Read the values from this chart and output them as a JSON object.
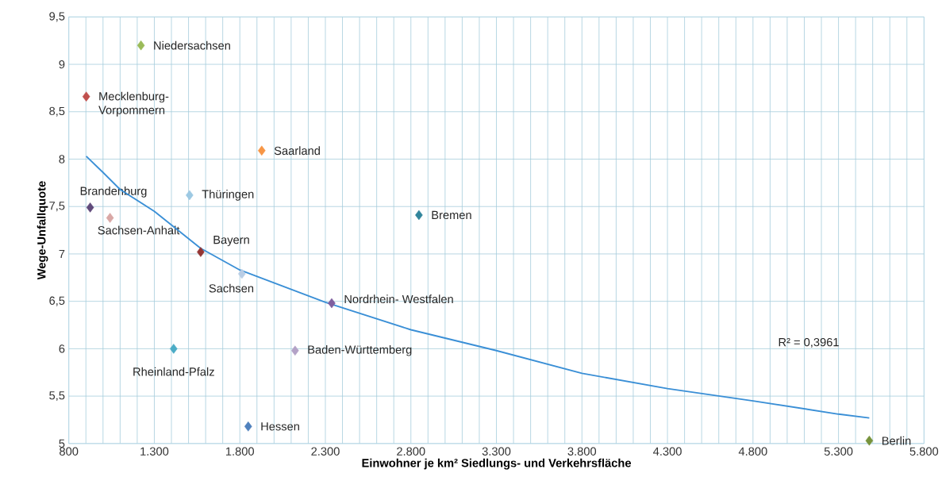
{
  "chart_data": {
    "type": "scatter",
    "xlabel": "Einwohner je km² Siedlungs- und Verkehrsfläche",
    "ylabel": "Wege-Unfallquote",
    "marker": "diamond",
    "grid": true,
    "xlim": [
      800,
      5800
    ],
    "xticks": [
      800,
      {
        "value": 900,
        "label": null
      },
      {
        "value": 1000,
        "label": null
      },
      {
        "value": 1100,
        "label": null
      },
      {
        "value": 1200,
        "label": null
      },
      {
        "value": 1300,
        "label": "1.300"
      },
      {
        "value": 1400,
        "label": null
      },
      {
        "value": 1500,
        "label": null
      },
      {
        "value": 1600,
        "label": null
      },
      {
        "value": 1700,
        "label": null
      },
      {
        "value": 1800,
        "label": "1.800"
      },
      {
        "value": 1900,
        "label": null
      },
      {
        "value": 2000,
        "label": null
      },
      {
        "value": 2100,
        "label": null
      },
      {
        "value": 2200,
        "label": null
      },
      {
        "value": 2300,
        "label": "2.300"
      },
      {
        "value": 2400,
        "label": null
      },
      {
        "value": 2500,
        "label": null
      },
      {
        "value": 2600,
        "label": null
      },
      {
        "value": 2700,
        "label": null
      },
      {
        "value": 2800,
        "label": "2.800"
      },
      {
        "value": 2900,
        "label": null
      },
      {
        "value": 3000,
        "label": null
      },
      {
        "value": 3100,
        "label": null
      },
      {
        "value": 3200,
        "label": null
      },
      {
        "value": 3300,
        "label": "3.300"
      },
      {
        "value": 3400,
        "label": null
      },
      {
        "value": 3500,
        "label": null
      },
      {
        "value": 3600,
        "label": null
      },
      {
        "value": 3700,
        "label": null
      },
      {
        "value": 3800,
        "label": "3.800"
      },
      {
        "value": 3900,
        "label": null
      },
      {
        "value": 4000,
        "label": null
      },
      {
        "value": 4100,
        "label": null
      },
      {
        "value": 4200,
        "label": null
      },
      {
        "value": 4300,
        "label": "4.300"
      },
      {
        "value": 4400,
        "label": null
      },
      {
        "value": 4500,
        "label": null
      },
      {
        "value": 4600,
        "label": null
      },
      {
        "value": 4700,
        "label": null
      },
      {
        "value": 4800,
        "label": "4.800"
      },
      {
        "value": 4900,
        "label": null
      },
      {
        "value": 5000,
        "label": null
      },
      {
        "value": 5100,
        "label": null
      },
      {
        "value": 5200,
        "label": null
      },
      {
        "value": 5300,
        "label": "5.300"
      },
      {
        "value": 5400,
        "label": null
      },
      {
        "value": 5500,
        "label": null
      },
      {
        "value": 5600,
        "label": null
      },
      {
        "value": 5700,
        "label": null
      },
      {
        "value": 5800,
        "label": "5.800"
      }
    ],
    "ylim": [
      5,
      9.5
    ],
    "yticks": [
      5,
      {
        "value": 5.5,
        "label": "5,5"
      },
      6,
      {
        "value": 6.5,
        "label": "6,5"
      },
      7,
      {
        "value": 7.5,
        "label": "7,5"
      },
      8,
      {
        "value": 8.5,
        "label": "8,5"
      },
      9,
      {
        "value": 9.5,
        "label": "9,5"
      }
    ],
    "series": [
      {
        "name": "Niedersachsen",
        "color": "#9bbb59",
        "x": [
          1222
        ],
        "values": [
          9.2
        ]
      },
      {
        "name": "Mecklenburg-Vorpommern",
        "color": "#c0504d",
        "x": [
          902
        ],
        "values": [
          8.66
        ]
      },
      {
        "name": "Saarland",
        "color": "#f79646",
        "x": [
          1928
        ],
        "values": [
          8.09
        ]
      },
      {
        "name": "Thüringen",
        "color": "#9dc9e3",
        "x": [
          1506
        ],
        "values": [
          7.62
        ]
      },
      {
        "name": "Brandenburg",
        "color": "#604a7b",
        "x": [
          925
        ],
        "values": [
          7.49
        ]
      },
      {
        "name": "Sachsen-Anhalt",
        "color": "#d9a8a6",
        "x": [
          1041
        ],
        "values": [
          7.38
        ]
      },
      {
        "name": "Bremen",
        "color": "#31859c",
        "x": [
          2847
        ],
        "values": [
          7.41
        ]
      },
      {
        "name": "Bayern",
        "color": "#943634",
        "x": [
          1571
        ],
        "values": [
          7.02
        ]
      },
      {
        "name": "Sachsen",
        "color": "#b9cde5",
        "x": [
          1812
        ],
        "values": [
          6.79
        ]
      },
      {
        "name": "Nordrhein- Westfalen",
        "color": "#7f5f9f",
        "x": [
          2337
        ],
        "values": [
          6.48
        ]
      },
      {
        "name": "Rheinland-Pfalz",
        "color": "#4bacc6",
        "x": [
          1413
        ],
        "values": [
          6.0
        ]
      },
      {
        "name": "Baden-Württemberg",
        "color": "#b3a2c7",
        "x": [
          2123
        ],
        "values": [
          5.98
        ]
      },
      {
        "name": "Hessen",
        "color": "#4f81bd",
        "x": [
          1849
        ],
        "values": [
          5.18
        ]
      },
      {
        "name": "Berlin",
        "color": "#77933c",
        "x": [
          5480
        ],
        "values": [
          5.03
        ]
      },
      {
        "type": "line",
        "marker": "none",
        "color": "#3a8fd6",
        "x": [
          902,
          1000,
          1100,
          1300,
          1570,
          1800,
          2300,
          2800,
          3300,
          3800,
          4300,
          4800,
          5300,
          5480
        ],
        "values": [
          8.03,
          7.86,
          7.68,
          7.45,
          7.06,
          6.83,
          6.49,
          6.2,
          5.98,
          5.74,
          5.58,
          5.45,
          5.31,
          5.27
        ]
      }
    ],
    "annotations": [
      "R² = 0,3961"
    ]
  }
}
